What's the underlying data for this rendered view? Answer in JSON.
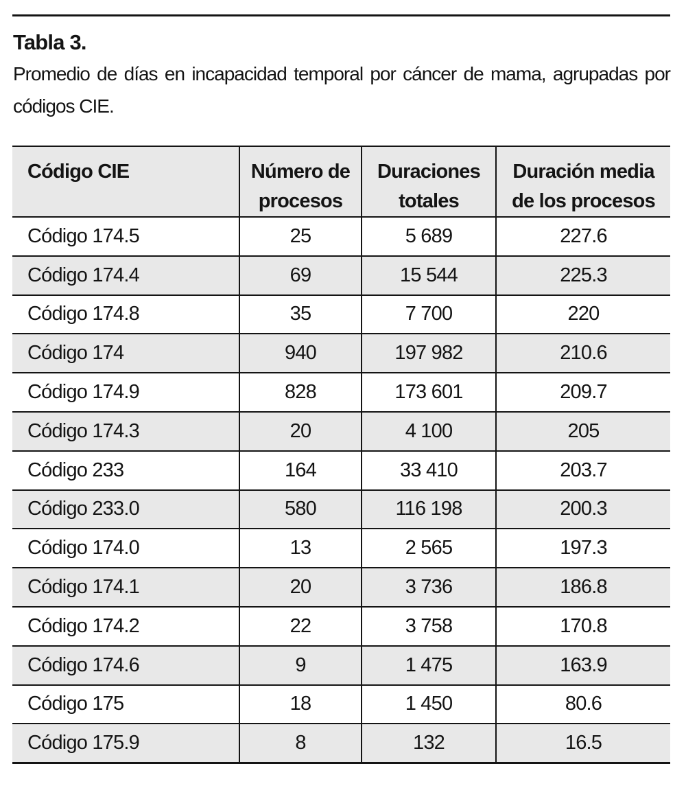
{
  "paper": {
    "table_label": "Tabla 3.",
    "caption_line1": "Promedio de días en incapacidad temporal por cáncer de mama, agrupadas por",
    "caption_line2": "códigos CIE."
  },
  "colors": {
    "row_shade": "#e8e8e8",
    "rule": "#141414",
    "text": "#141414"
  },
  "table": {
    "columns": [
      "Código CIE",
      "Número de\nprocesos",
      "Duraciones\ntotales",
      "Duración media\nde los procesos"
    ],
    "rows": [
      [
        "Código 174.5",
        "25",
        "5 689",
        "227.6"
      ],
      [
        "Código 174.4",
        "69",
        "15 544",
        "225.3"
      ],
      [
        "Código 174.8",
        "35",
        "7 700",
        "220"
      ],
      [
        "Código 174",
        "940",
        "197 982",
        "210.6"
      ],
      [
        "Código 174.9",
        "828",
        "173 601",
        "209.7"
      ],
      [
        "Código 174.3",
        "20",
        "4 100",
        "205"
      ],
      [
        "Código 233",
        "164",
        "33 410",
        "203.7"
      ],
      [
        "Código 233.0",
        "580",
        "116 198",
        "200.3"
      ],
      [
        "Código 174.0",
        "13",
        "2 565",
        "197.3"
      ],
      [
        "Código 174.1",
        "20",
        "3 736",
        "186.8"
      ],
      [
        "Código 174.2",
        "22",
        "3 758",
        "170.8"
      ],
      [
        "Código 174.6",
        "9",
        "1 475",
        "163.9"
      ],
      [
        "Código 175",
        "18",
        "1 450",
        "80.6"
      ],
      [
        "Código 175.9",
        "8",
        "132",
        "16.5"
      ]
    ]
  }
}
